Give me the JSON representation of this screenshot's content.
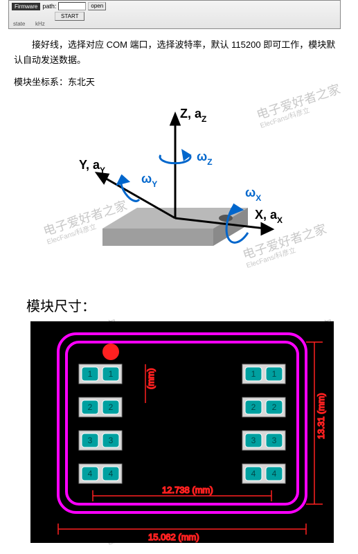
{
  "topbar": {
    "firmware_label": "Firmware",
    "path_label": "path:",
    "open_label": "open",
    "start_label": "START",
    "state_label": "state",
    "khz_label": "kHz"
  },
  "paragraph1": "接好线，选择对应 COM 端口，选择波特率，默认 115200 即可工作，模块默认自动发送数据。",
  "paragraph2": "模块坐标系：东北天",
  "axes": {
    "z_label": "Z, a",
    "z_sub": "Z",
    "y_label": "Y, a",
    "y_sub": "Y",
    "x_label": "X, a",
    "x_sub": "X",
    "omega_z": "ω",
    "omega_z_sub": "Z",
    "omega_y": "ω",
    "omega_y_sub": "Y",
    "omega_x": "ω",
    "omega_x_sub": "X",
    "chip_top_color": "#b9b9b9",
    "chip_side_color": "#8a8a8a",
    "chip_front_color": "#9e9e9e",
    "axis_color": "#000000",
    "omega_color": "#0066cc",
    "dot_color": "#555555"
  },
  "watermark": {
    "text": "电子爱好者之家",
    "sub": "ElecFans/科彦立",
    "color": "#c8c8c8"
  },
  "heading": "模块尺寸：",
  "pcb": {
    "bg": "#000000",
    "outline_color": "#ff00ff",
    "pad_fill": "#00a0a0",
    "pad_border": "#888888",
    "pad_text_color": "#007070",
    "led_color": "#ff2020",
    "dim_color": "#ff2020",
    "pad_body": "#d8d8d8",
    "pads_left": [
      "1",
      "2",
      "3",
      "4"
    ],
    "pads_right": [
      "1",
      "2",
      "3",
      "4"
    ],
    "dim_width_inner": "12.738",
    "dim_width_outer": "15.062",
    "dim_height": "13.31",
    "dim_small": "(mm)",
    "mm_unit": "(mm)"
  }
}
